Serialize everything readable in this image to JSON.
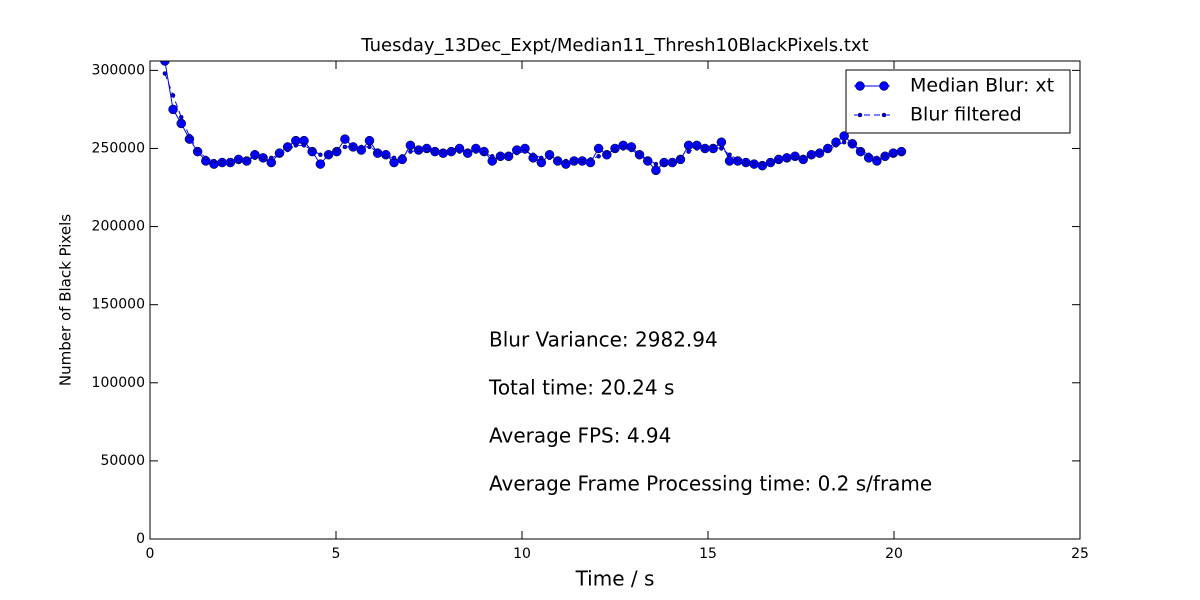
{
  "chart_data": {
    "type": "line",
    "title": "Tuesday_13Dec_Expt/Median11_Thresh10BlackPixels.txt",
    "x_label": "Time / s",
    "y_label": "Number of Black Pixels",
    "x": [
      0.4,
      0.62,
      0.84,
      1.06,
      1.28,
      1.5,
      1.72,
      1.94,
      2.16,
      2.38,
      2.6,
      2.82,
      3.04,
      3.26,
      3.48,
      3.7,
      3.92,
      4.14,
      4.36,
      4.58,
      4.8,
      5.02,
      5.24,
      5.46,
      5.68,
      5.9,
      6.12,
      6.34,
      6.56,
      6.78,
      7.0,
      7.22,
      7.44,
      7.66,
      7.88,
      8.1,
      8.32,
      8.54,
      8.76,
      8.98,
      9.2,
      9.42,
      9.64,
      9.86,
      10.08,
      10.3,
      10.52,
      10.74,
      10.96,
      11.18,
      11.4,
      11.62,
      11.84,
      12.06,
      12.28,
      12.5,
      12.72,
      12.94,
      13.16,
      13.38,
      13.6,
      13.82,
      14.04,
      14.26,
      14.48,
      14.7,
      14.92,
      15.14,
      15.36,
      15.58,
      15.8,
      16.02,
      16.24,
      16.46,
      16.68,
      16.9,
      17.12,
      17.34,
      17.56,
      17.78,
      18.0,
      18.22,
      18.44,
      18.66,
      18.88,
      19.1,
      19.32,
      19.54,
      19.76,
      19.98,
      20.2
    ],
    "series": [
      {
        "name": "Median Blur: xt",
        "color": "#0000ff",
        "line_style": "solid",
        "marker_size": 4.5,
        "values": [
          306000,
          275000,
          266000,
          256000,
          248000,
          242000,
          240000,
          241000,
          241000,
          243000,
          242000,
          246000,
          244000,
          241000,
          247000,
          251000,
          255000,
          255000,
          248000,
          240000,
          246000,
          248000,
          256000,
          251000,
          249000,
          255000,
          247000,
          246000,
          241000,
          243000,
          252000,
          249000,
          250000,
          248000,
          247000,
          248000,
          250000,
          247000,
          250000,
          248000,
          242000,
          245000,
          245000,
          249000,
          250000,
          244000,
          241000,
          246000,
          242000,
          240000,
          242000,
          242000,
          241000,
          250000,
          246000,
          250000,
          252000,
          251000,
          246000,
          242000,
          236000,
          241000,
          241000,
          243000,
          252000,
          252000,
          250000,
          250000,
          254000,
          242000,
          242000,
          241000,
          240000,
          239000,
          241000,
          243000,
          244000,
          245000,
          243000,
          246000,
          247000,
          250000,
          254000,
          258000,
          253000,
          248000,
          244000,
          242000,
          245000,
          247000,
          248000
        ]
      },
      {
        "name": "Blur filtered",
        "color": "#0000ff",
        "line_style": "dashed",
        "marker_size": 2,
        "values": [
          298000,
          284000,
          270000,
          258000,
          249000,
          244000,
          242000,
          241000,
          241000,
          242000,
          243000,
          244000,
          244000,
          244000,
          246000,
          249000,
          252000,
          252000,
          249000,
          246000,
          246000,
          249000,
          251000,
          251000,
          251000,
          251000,
          248000,
          245000,
          244000,
          245000,
          248000,
          249000,
          249000,
          248000,
          248000,
          248000,
          248000,
          248000,
          248000,
          247000,
          245000,
          245000,
          246000,
          247000,
          248000,
          246000,
          244000,
          244000,
          243000,
          242000,
          242000,
          242000,
          243000,
          245000,
          247000,
          249000,
          250000,
          249000,
          246000,
          243000,
          240000,
          240000,
          241000,
          244000,
          248000,
          250000,
          250000,
          251000,
          250000,
          246000,
          243000,
          241000,
          240000,
          240000,
          241000,
          242000,
          243000,
          244000,
          244000,
          245000,
          247000,
          249000,
          252000,
          254000,
          253000,
          249000,
          246000,
          244000,
          245000,
          246000,
          247000
        ]
      }
    ],
    "xlim": [
      0,
      25
    ],
    "xticks": [
      0,
      5,
      10,
      15,
      20,
      25
    ],
    "ylim": [
      0,
      306000
    ],
    "yticks": [
      0,
      50000,
      100000,
      150000,
      200000,
      250000,
      300000
    ],
    "grid": false,
    "legend": "upper right",
    "annotations": [
      "Blur Variance: 2982.94",
      "Total time: 20.24 s",
      "Average FPS: 4.94",
      "Average Frame Processing time: 0.2 s/frame"
    ]
  }
}
